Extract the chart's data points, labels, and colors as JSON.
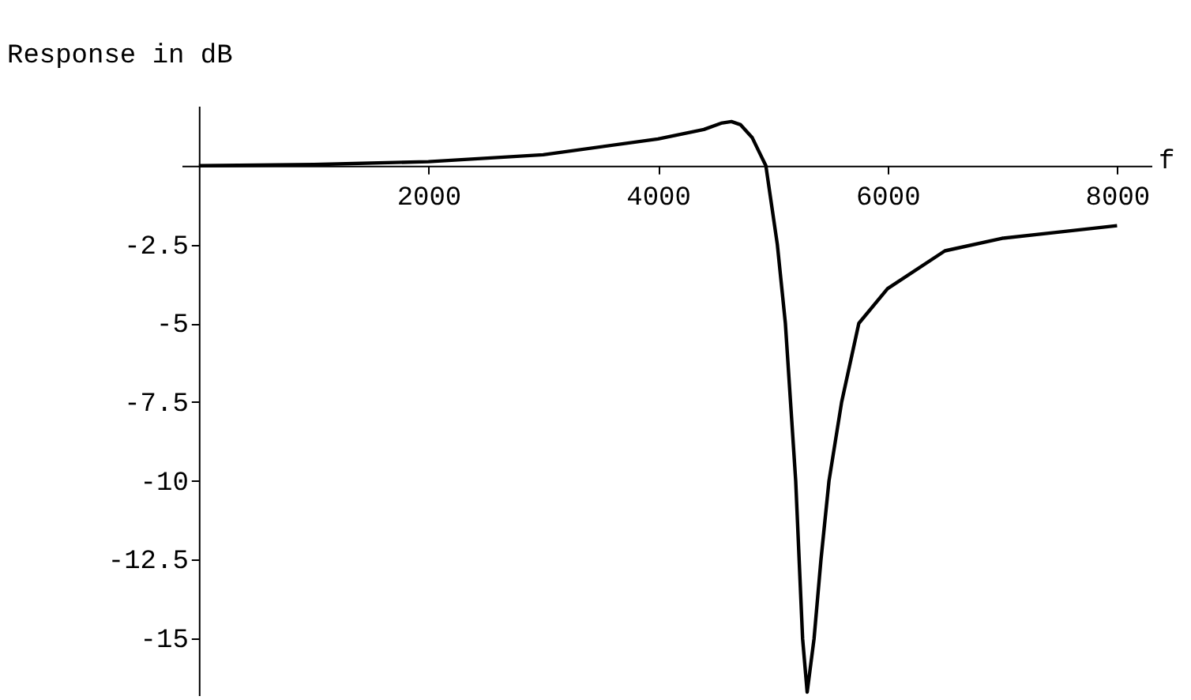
{
  "chart_data": {
    "type": "line",
    "ylabel": "Response in dB",
    "xlabel": "f",
    "x": [
      0,
      1000,
      2000,
      3000,
      4000,
      4200,
      4400,
      4550,
      4640,
      4720,
      4820,
      4880,
      4940,
      5040,
      5110,
      5200,
      5260,
      5300,
      5360,
      5420,
      5490,
      5600,
      5750,
      6000,
      6500,
      7000,
      7500,
      8000
    ],
    "series": [
      {
        "color": "#000000",
        "values": [
          0,
          0.04,
          0.13,
          0.35,
          0.85,
          1.0,
          1.15,
          1.35,
          1.4,
          1.3,
          0.9,
          0.45,
          0,
          -2.5,
          -5,
          -10,
          -15,
          -16.7,
          -15,
          -12.5,
          -10,
          -7.5,
          -5,
          -3.9,
          -2.7,
          -2.3,
          -2.1,
          -1.9
        ]
      }
    ],
    "xlim": [
      -150,
      8300
    ],
    "ylim": [
      -16.8,
      1.9
    ],
    "xticks": [
      2000,
      4000,
      6000,
      8000
    ],
    "yticks": [
      -15,
      -12.5,
      -10,
      -7.5,
      -5,
      -2.5
    ],
    "grid": false,
    "marker": "none",
    "line_style": "solid"
  }
}
